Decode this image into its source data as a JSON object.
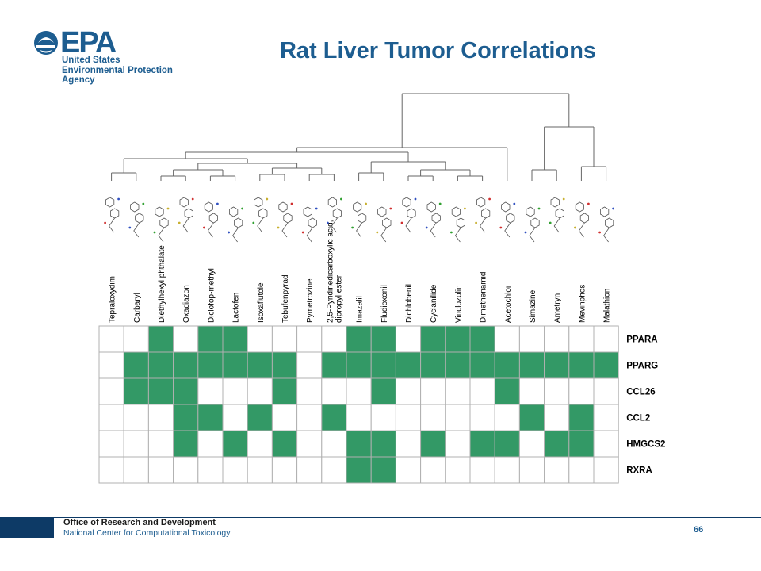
{
  "logo": {
    "mark": "EPA",
    "agency_lines": [
      "United States",
      "Environmental Protection",
      "Agency"
    ],
    "color": "#1d5d90"
  },
  "title": "Rat Liver Tumor Correlations",
  "chart_data": {
    "type": "heatmap",
    "fill_color": "#339966",
    "empty_color": "#ffffff",
    "columns": [
      "Tepraloxydim",
      "Carbaryl",
      "Diethylhexyl phthalate",
      "Oxadiazon",
      "Diclofop-methyl",
      "Lactofen",
      "Isoxaflutole",
      "Tebufenpyrad",
      "Pymetrozine",
      "2,5-Pyridinedicarboxylic acid, dipropyl ester",
      "Imazalil",
      "Fludioxonil",
      "Dichlobenil",
      "Cyclanilide",
      "Vinclozolin",
      "Dimethenamid",
      "Acetochlor",
      "Simazine",
      "Ametryn",
      "Mevinphos",
      "Malathion"
    ],
    "rows": [
      "PPARA",
      "PPARG",
      "CCL26",
      "CCL2",
      "HMGCS2",
      "RXRA"
    ],
    "values": [
      [
        0,
        0,
        1,
        0,
        1,
        1,
        0,
        0,
        0,
        0,
        1,
        1,
        0,
        1,
        1,
        1,
        0,
        0,
        0,
        0,
        0
      ],
      [
        0,
        1,
        1,
        1,
        1,
        1,
        1,
        1,
        0,
        1,
        1,
        1,
        1,
        1,
        1,
        1,
        1,
        1,
        1,
        1,
        1
      ],
      [
        0,
        1,
        1,
        1,
        0,
        0,
        0,
        1,
        0,
        0,
        0,
        1,
        0,
        0,
        0,
        0,
        1,
        0,
        0,
        0,
        0
      ],
      [
        0,
        0,
        0,
        1,
        1,
        0,
        1,
        0,
        0,
        1,
        0,
        0,
        0,
        0,
        0,
        0,
        0,
        1,
        0,
        1,
        0
      ],
      [
        0,
        0,
        0,
        1,
        0,
        1,
        0,
        1,
        0,
        0,
        1,
        1,
        0,
        1,
        0,
        1,
        1,
        0,
        1,
        1,
        0
      ],
      [
        0,
        0,
        0,
        0,
        0,
        0,
        0,
        0,
        0,
        0,
        1,
        1,
        0,
        0,
        0,
        0,
        0,
        0,
        0,
        0,
        0
      ]
    ],
    "dendrogram": "hierarchical clustering of the 21 chemicals into two main clusters",
    "structure_icons": "2D chemical structure drawing per chemical"
  },
  "footer": {
    "office": "Office of Research and Development",
    "center": "National Center for Computational Toxicology",
    "page": "66"
  }
}
